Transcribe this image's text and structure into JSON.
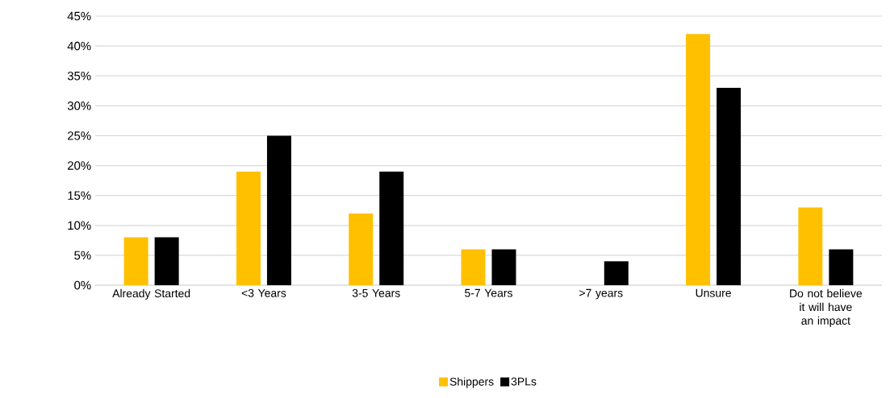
{
  "chart_data": {
    "type": "bar",
    "categories": [
      "Already Started",
      "<3 Years",
      "3-5 Years",
      "5-7 Years",
      ">7 years",
      "Unsure",
      "Do not believe it will have an impact"
    ],
    "series": [
      {
        "name": "Shippers",
        "color": "#ffc000",
        "values": [
          8,
          19,
          12,
          6,
          0,
          42,
          13
        ]
      },
      {
        "name": "3PLs",
        "color": "#000000",
        "values": [
          8,
          25,
          19,
          6,
          4,
          33,
          6
        ]
      }
    ],
    "ylim": [
      0,
      45
    ],
    "yticks": [
      {
        "value": 0,
        "label": "0%"
      },
      {
        "value": 5,
        "label": "5%"
      },
      {
        "value": 10,
        "label": "10%"
      },
      {
        "value": 15,
        "label": "15%"
      },
      {
        "value": 20,
        "label": "20%"
      },
      {
        "value": 25,
        "label": "25%"
      },
      {
        "value": 30,
        "label": "30%"
      },
      {
        "value": 35,
        "label": "35%"
      },
      {
        "value": 40,
        "label": "40%"
      },
      {
        "value": 45,
        "label": "45%"
      }
    ],
    "grid": "y",
    "legend": "bottom"
  }
}
